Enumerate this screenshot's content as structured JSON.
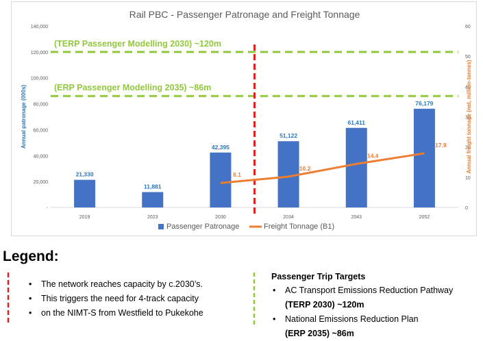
{
  "chart_data": {
    "type": "bar+line",
    "title": "Rail PBC - Passenger Patronage and Freight Tonnage",
    "categories": [
      "2019",
      "2023",
      "2030",
      "2034",
      "2043",
      "2052"
    ],
    "ylabel_left": "Annual patronage (000s)",
    "ylabel_right": "Annual freight tonnage (net, million-tonnes)",
    "ylim_left": [
      0,
      140000
    ],
    "ylim_right": [
      0,
      60
    ],
    "yticks_left": [
      "-",
      "20,000",
      "40,000",
      "60,000",
      "80,000",
      "100,000",
      "120,000",
      "140,000"
    ],
    "yticks_right": [
      "0",
      "10",
      "20",
      "30",
      "40",
      "50",
      "60"
    ],
    "bar_series": {
      "name": "Passenger Patronage",
      "values": [
        21330,
        11881,
        42395,
        51122,
        61411,
        76179
      ],
      "labels": [
        "21,330",
        "11,881",
        "42,395",
        "51,122",
        "61,411",
        "76,179"
      ],
      "color": "#4472c4",
      "label_color": "#2e75b6"
    },
    "line_series": {
      "name": "Freight Tonnage (B1)",
      "categories": [
        "2030",
        "2034",
        "2043",
        "2052"
      ],
      "values": [
        8.1,
        10.2,
        14.4,
        17.9
      ],
      "labels": [
        "8.1",
        "10.2",
        "14.4",
        "17.9"
      ],
      "color": "#ed7d31"
    },
    "reference_lines": [
      {
        "label": "(TERP Passenger Modelling  2030) ~120m",
        "value": 120000,
        "color": "#92c83e"
      },
      {
        "label": "(ERP Passenger Modelling  2035) ~86m",
        "value": 86000,
        "color": "#92c83e"
      }
    ],
    "capacity_marker": {
      "between": [
        "2030",
        "2034"
      ],
      "color": "#e02020"
    },
    "legend_position": "bottom",
    "grid": false
  },
  "legend": {
    "title": "Legend:",
    "capacity_items": [
      "The network reaches capacity by c.2030’s.",
      "This triggers the need for 4-track capacity",
      "on the NIMT-S from Westfield to Pukekohe"
    ],
    "targets_title": "Passenger Trip Targets",
    "targets": [
      {
        "line1": "AC Transport Emissions Reduction Pathway",
        "line2": "(TERP 2030) ~120m"
      },
      {
        "line1": "National Emissions Reduction Plan",
        "line2": "(ERP 2035) ~86m"
      }
    ],
    "red_color": "#e02020",
    "green_color": "#92c83e"
  }
}
